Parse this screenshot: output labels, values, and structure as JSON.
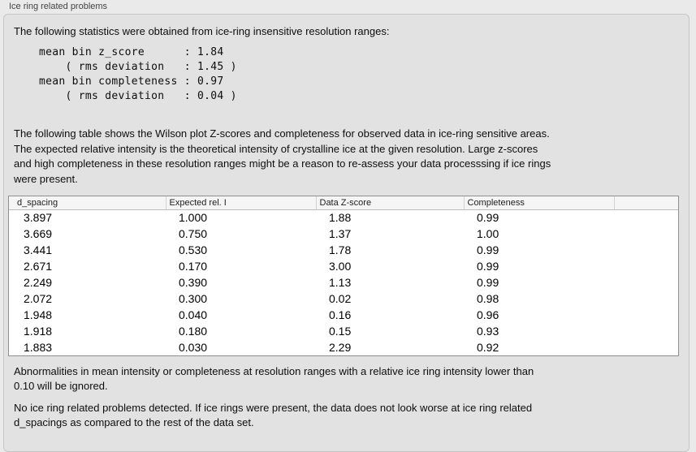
{
  "panel": {
    "title": "Ice ring related problems"
  },
  "intro": "The following statistics were obtained from ice-ring insensitive resolution ranges:",
  "stats": "mean bin z_score      : 1.84\n    ( rms deviation   : 1.45 )\nmean bin completeness : 0.97\n    ( rms deviation   : 0.04 )",
  "description": "The following table shows the Wilson plot Z-scores and completeness for observed data in ice-ring sensitive areas.\nThe expected relative intensity is the theoretical intensity of crystalline ice at the given resolution. Large z-scores\nand high completeness in these resolution ranges might be a reason to re-assess your data processsing if ice rings\nwere present.",
  "table": {
    "columns": [
      "d_spacing",
      "Expected rel. I",
      "Data Z-score",
      "Completeness",
      ""
    ],
    "rows": [
      [
        "3.897",
        "1.000",
        "1.88",
        "0.99"
      ],
      [
        "3.669",
        "0.750",
        "1.37",
        "1.00"
      ],
      [
        "3.441",
        "0.530",
        "1.78",
        "0.99"
      ],
      [
        "2.671",
        "0.170",
        "3.00",
        "0.99"
      ],
      [
        "2.249",
        "0.390",
        "1.13",
        "0.99"
      ],
      [
        "2.072",
        "0.300",
        "0.02",
        "0.98"
      ],
      [
        "1.948",
        "0.040",
        "0.16",
        "0.96"
      ],
      [
        "1.918",
        "0.180",
        "0.15",
        "0.93"
      ],
      [
        "1.883",
        "0.030",
        "2.29",
        "0.92"
      ]
    ]
  },
  "ignore_note": "Abnormalities in mean intensity or completeness at resolution ranges with a relative ice ring intensity lower than\n0.10 will be ignored.",
  "conclusion": "No ice ring related problems detected. If ice rings were present, the data does not look worse at ice ring related\nd_spacings as compared to the rest of the data set.",
  "colors": {
    "page_bg": "#eaeaea",
    "panel_bg": "#e2e2e2",
    "panel_border": "#c6c6c6",
    "table_bg": "#ffffff",
    "table_border": "#8f8f8f",
    "header_bg": "#f5f5f5",
    "text": "#0d0d0d"
  }
}
